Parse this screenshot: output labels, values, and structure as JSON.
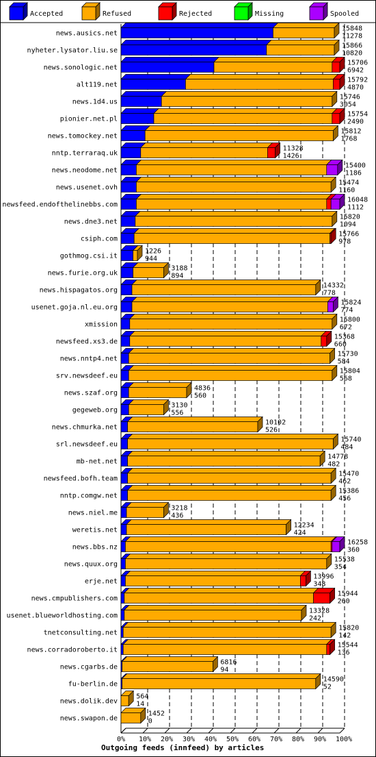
{
  "legend": [
    {
      "label": "Accepted",
      "color": "#0000ff"
    },
    {
      "label": "Refused",
      "color": "#ffaa00"
    },
    {
      "label": "Rejected",
      "color": "#ff0000"
    },
    {
      "label": "Missing",
      "color": "#00ff00"
    },
    {
      "label": "Spooled",
      "color": "#aa00ff"
    }
  ],
  "chart_data": {
    "type": "bar",
    "orientation": "horizontal",
    "stacked": true,
    "title": "",
    "xlabel": "Outgoing feeds (innfeed) by articles",
    "ylabel": "",
    "x_ticks": [
      "0%",
      "10%",
      "20%",
      "30%",
      "40%",
      "50%",
      "60%",
      "70%",
      "80%",
      "90%",
      "100%"
    ],
    "xlim": [
      0,
      100
    ],
    "grid": true,
    "legend_position": "top",
    "rows": [
      {
        "name": "news.ausics.net",
        "total": "15848",
        "accepted_count": "11278",
        "accepted": 69.5,
        "refused": 28,
        "rejected": 0,
        "spooled": 0
      },
      {
        "name": "nyheter.lysator.liu.se",
        "total": "15866",
        "accepted_count": "10820",
        "accepted": 66.5,
        "refused": 31,
        "rejected": 0,
        "spooled": 0
      },
      {
        "name": "news.sonologic.net",
        "total": "15706",
        "accepted_count": "6942",
        "accepted": 42.5,
        "refused": 54,
        "rejected": 3.5,
        "spooled": 0
      },
      {
        "name": "alt119.net",
        "total": "15792",
        "accepted_count": "4870",
        "accepted": 29.5,
        "refused": 67.5,
        "rejected": 3,
        "spooled": 0
      },
      {
        "name": "news.1d4.us",
        "total": "15746",
        "accepted_count": "3054",
        "accepted": 18.5,
        "refused": 78,
        "rejected": 0,
        "spooled": 0
      },
      {
        "name": "pionier.net.pl",
        "total": "15754",
        "accepted_count": "2490",
        "accepted": 15,
        "refused": 81.5,
        "rejected": 3.5,
        "spooled": 0
      },
      {
        "name": "news.tomockey.net",
        "total": "15812",
        "accepted_count": "1768",
        "accepted": 11,
        "refused": 86,
        "rejected": 0,
        "spooled": 0
      },
      {
        "name": "nntp.terraraq.uk",
        "total": "11328",
        "accepted_count": "1426",
        "accepted": 9,
        "refused": 58,
        "rejected": 3.5,
        "spooled": 0
      },
      {
        "name": "news.neodome.net",
        "total": "15400",
        "accepted_count": "1186",
        "accepted": 7,
        "refused": 87,
        "rejected": 0,
        "spooled": 5
      },
      {
        "name": "news.usenet.ovh",
        "total": "15474",
        "accepted_count": "1160",
        "accepted": 7,
        "refused": 89,
        "rejected": 0,
        "spooled": 0
      },
      {
        "name": "newsfeed.endofthelinebbs.com",
        "total": "16048",
        "accepted_count": "1112",
        "accepted": 7,
        "refused": 87,
        "rejected": 2,
        "spooled": 4
      },
      {
        "name": "news.dne3.net",
        "total": "15820",
        "accepted_count": "1094",
        "accepted": 6.5,
        "refused": 90,
        "rejected": 0,
        "spooled": 0
      },
      {
        "name": "csiph.com",
        "total": "15766",
        "accepted_count": "978",
        "accepted": 6,
        "refused": 89.5,
        "rejected": 0.5,
        "spooled": 0
      },
      {
        "name": "gothmog.csi.it",
        "total": "1226",
        "accepted_count": "944",
        "accepted": 5.5,
        "refused": 2,
        "rejected": 0,
        "spooled": 0
      },
      {
        "name": "news.furie.org.uk",
        "total": "3188",
        "accepted_count": "894",
        "accepted": 5.5,
        "refused": 14,
        "rejected": 0,
        "spooled": 0
      },
      {
        "name": "news.hispagatos.org",
        "total": "14332",
        "accepted_count": "778",
        "accepted": 5,
        "refused": 84,
        "rejected": 0,
        "spooled": 0
      },
      {
        "name": "usenet.goja.nl.eu.org",
        "total": "15824",
        "accepted_count": "774",
        "accepted": 5,
        "refused": 89.5,
        "rejected": 0,
        "spooled": 2.5
      },
      {
        "name": "xmission",
        "total": "15800",
        "accepted_count": "672",
        "accepted": 4,
        "refused": 92.5,
        "rejected": 0,
        "spooled": 0
      },
      {
        "name": "newsfeed.xs3.de",
        "total": "15368",
        "accepted_count": "660",
        "accepted": 4,
        "refused": 87.5,
        "rejected": 2.5,
        "spooled": 0
      },
      {
        "name": "news.nntp4.net",
        "total": "15730",
        "accepted_count": "584",
        "accepted": 3.5,
        "refused": 92,
        "rejected": 0,
        "spooled": 0
      },
      {
        "name": "srv.newsdeef.eu",
        "total": "15804",
        "accepted_count": "568",
        "accepted": 3.5,
        "refused": 93,
        "rejected": 0,
        "spooled": 0
      },
      {
        "name": "news.szaf.org",
        "total": "4836",
        "accepted_count": "560",
        "accepted": 3.5,
        "refused": 26.5,
        "rejected": 0,
        "spooled": 0
      },
      {
        "name": "gegeweb.org",
        "total": "3130",
        "accepted_count": "556",
        "accepted": 3.5,
        "refused": 16,
        "rejected": 0,
        "spooled": 0
      },
      {
        "name": "news.chmurka.net",
        "total": "10102",
        "accepted_count": "526",
        "accepted": 3,
        "refused": 59.5,
        "rejected": 0,
        "spooled": 0
      },
      {
        "name": "srl.newsdeef.eu",
        "total": "15740",
        "accepted_count": "484",
        "accepted": 3,
        "refused": 94,
        "rejected": 0,
        "spooled": 0
      },
      {
        "name": "mb-net.net",
        "total": "14778",
        "accepted_count": "482",
        "accepted": 3,
        "refused": 88,
        "rejected": 0,
        "spooled": 0
      },
      {
        "name": "newsfeed.bofh.team",
        "total": "15470",
        "accepted_count": "462",
        "accepted": 3,
        "refused": 93,
        "rejected": 0,
        "spooled": 0
      },
      {
        "name": "nntp.comgw.net",
        "total": "15386",
        "accepted_count": "456",
        "accepted": 3,
        "refused": 93,
        "rejected": 0,
        "spooled": 0
      },
      {
        "name": "news.niel.me",
        "total": "3218",
        "accepted_count": "436",
        "accepted": 2.5,
        "refused": 17,
        "rejected": 0,
        "spooled": 0
      },
      {
        "name": "weretis.net",
        "total": "12234",
        "accepted_count": "424",
        "accepted": 2.5,
        "refused": 73,
        "rejected": 0,
        "spooled": 0
      },
      {
        "name": "news.bbs.nz",
        "total": "16258",
        "accepted_count": "360",
        "accepted": 2,
        "refused": 94,
        "rejected": 0.5,
        "spooled": 3.5
      },
      {
        "name": "news.quux.org",
        "total": "15538",
        "accepted_count": "354",
        "accepted": 2,
        "refused": 92,
        "rejected": 0,
        "spooled": 0
      },
      {
        "name": "erje.net",
        "total": "13996",
        "accepted_count": "348",
        "accepted": 2,
        "refused": 80,
        "rejected": 2.5,
        "spooled": 0
      },
      {
        "name": "news.cmpublishers.com",
        "total": "15944",
        "accepted_count": "260",
        "accepted": 1.5,
        "refused": 86.5,
        "rejected": 7.5,
        "spooled": 0
      },
      {
        "name": "usenet.blueworldhosting.com",
        "total": "13328",
        "accepted_count": "242",
        "accepted": 1.5,
        "refused": 81,
        "rejected": 0,
        "spooled": 0
      },
      {
        "name": "tnetconsulting.net",
        "total": "15820",
        "accepted_count": "142",
        "accepted": 1,
        "refused": 95,
        "rejected": 0,
        "spooled": 0
      },
      {
        "name": "news.corradoroberto.it",
        "total": "15544",
        "accepted_count": "136",
        "accepted": 1,
        "refused": 93,
        "rejected": 1.5,
        "spooled": 0
      },
      {
        "name": "news.cgarbs.de",
        "total": "6816",
        "accepted_count": "94",
        "accepted": 0.5,
        "refused": 41.5,
        "rejected": 0,
        "spooled": 0
      },
      {
        "name": "fu-berlin.de",
        "total": "14590",
        "accepted_count": "52",
        "accepted": 0.5,
        "refused": 88.5,
        "rejected": 0,
        "spooled": 0
      },
      {
        "name": "news.dolik.dev",
        "total": "564",
        "accepted_count": "14",
        "accepted": 0,
        "refused": 3.5,
        "rejected": 0,
        "spooled": 0
      },
      {
        "name": "news.swapon.de",
        "total": "1452",
        "accepted_count": "0",
        "accepted": 0,
        "refused": 9,
        "rejected": 0,
        "spooled": 0
      }
    ]
  }
}
